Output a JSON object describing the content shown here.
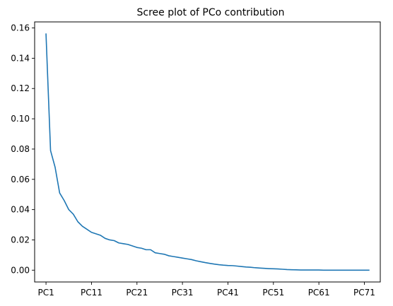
{
  "chart_data": {
    "type": "line",
    "title": "Scree plot of PCo contribution",
    "xlabel": "",
    "ylabel": "",
    "x_tick_labels": [
      "PC1",
      "PC11",
      "PC21",
      "PC31",
      "PC41",
      "PC51",
      "PC61",
      "PC71"
    ],
    "x_tick_indices": [
      1,
      11,
      21,
      31,
      41,
      51,
      61,
      71
    ],
    "x_range": [
      -1.5,
      74.5
    ],
    "ylim": [
      -0.0078,
      0.164
    ],
    "y_ticks": [
      0.0,
      0.02,
      0.04,
      0.06,
      0.08,
      0.1,
      0.12,
      0.14,
      0.16
    ],
    "y_tick_labels": [
      "0.00",
      "0.02",
      "0.04",
      "0.06",
      "0.08",
      "0.10",
      "0.12",
      "0.14",
      "0.16"
    ],
    "grid": false,
    "series": [
      {
        "color": "#1f77b4",
        "x": [
          1,
          2,
          3,
          4,
          5,
          6,
          7,
          8,
          9,
          10,
          11,
          12,
          13,
          14,
          15,
          16,
          17,
          18,
          19,
          20,
          21,
          22,
          23,
          24,
          25,
          26,
          27,
          28,
          29,
          30,
          31,
          32,
          33,
          34,
          35,
          36,
          37,
          38,
          39,
          40,
          41,
          42,
          43,
          44,
          45,
          46,
          47,
          48,
          49,
          50,
          51,
          52,
          53,
          54,
          55,
          56,
          57,
          58,
          59,
          60,
          61,
          62,
          63,
          64,
          65,
          66,
          67,
          68,
          69,
          70,
          71,
          72
        ],
        "values": [
          0.156,
          0.079,
          0.068,
          0.051,
          0.046,
          0.04,
          0.037,
          0.032,
          0.029,
          0.027,
          0.025,
          0.024,
          0.023,
          0.021,
          0.02,
          0.0195,
          0.018,
          0.0175,
          0.017,
          0.016,
          0.015,
          0.0145,
          0.0135,
          0.0135,
          0.0115,
          0.011,
          0.0105,
          0.0095,
          0.009,
          0.0085,
          0.008,
          0.0075,
          0.007,
          0.0062,
          0.0056,
          0.005,
          0.0045,
          0.004,
          0.0036,
          0.0033,
          0.0031,
          0.003,
          0.0027,
          0.0024,
          0.0021,
          0.0019,
          0.0016,
          0.0014,
          0.0012,
          0.001,
          0.0009,
          0.0008,
          0.0006,
          0.0004,
          0.0003,
          0.0002,
          0.0001,
          0.0001,
          0.0001,
          0.0001,
          0.0001,
          0.0,
          0.0,
          0.0,
          0.0,
          0.0,
          0.0,
          0.0,
          0.0,
          0.0,
          0.0,
          0.0
        ]
      }
    ]
  }
}
